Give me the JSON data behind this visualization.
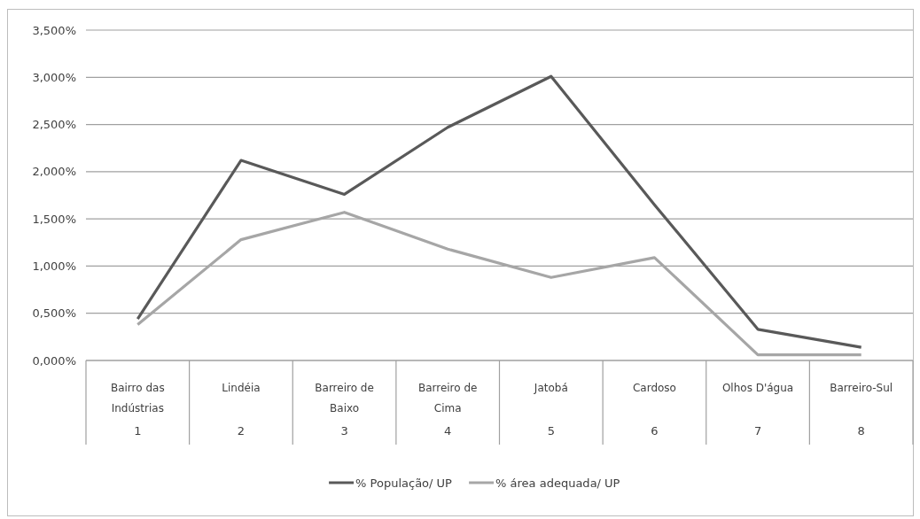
{
  "chart_data": {
    "type": "line",
    "categories": [
      "Bairro das Indústrias\n1",
      "Lindéia\n2",
      "Barreiro de Baixo\n3",
      "Barreiro de Cima\n4",
      "Jatobá\n5",
      "Cardoso\n6",
      "Olhos D'água\n7",
      "Barreiro-Sul\n8"
    ],
    "series": [
      {
        "name": "% População/ UP",
        "color": "#595959",
        "values": [
          0.44,
          2.12,
          1.76,
          2.47,
          3.01,
          1.65,
          0.33,
          0.14
        ]
      },
      {
        "name": "% área adequada/ UP",
        "color": "#a6a6a6",
        "values": [
          0.38,
          1.28,
          1.57,
          1.18,
          0.88,
          1.09,
          0.06,
          0.06
        ]
      }
    ],
    "ylim": [
      0,
      3.5
    ],
    "yticks": [
      {
        "value": 0,
        "label": "0,000%"
      },
      {
        "value": 0.5,
        "label": "0,500%"
      },
      {
        "value": 1,
        "label": "1,000%"
      },
      {
        "value": 1.5,
        "label": "1,500%"
      },
      {
        "value": 2,
        "label": "2,000%"
      },
      {
        "value": 2.5,
        "label": "2,500%"
      },
      {
        "value": 3,
        "label": "3,000%"
      },
      {
        "value": 3.5,
        "label": "3,500%"
      }
    ],
    "grid": "y",
    "legend": "bottom",
    "line_style": "solid"
  }
}
